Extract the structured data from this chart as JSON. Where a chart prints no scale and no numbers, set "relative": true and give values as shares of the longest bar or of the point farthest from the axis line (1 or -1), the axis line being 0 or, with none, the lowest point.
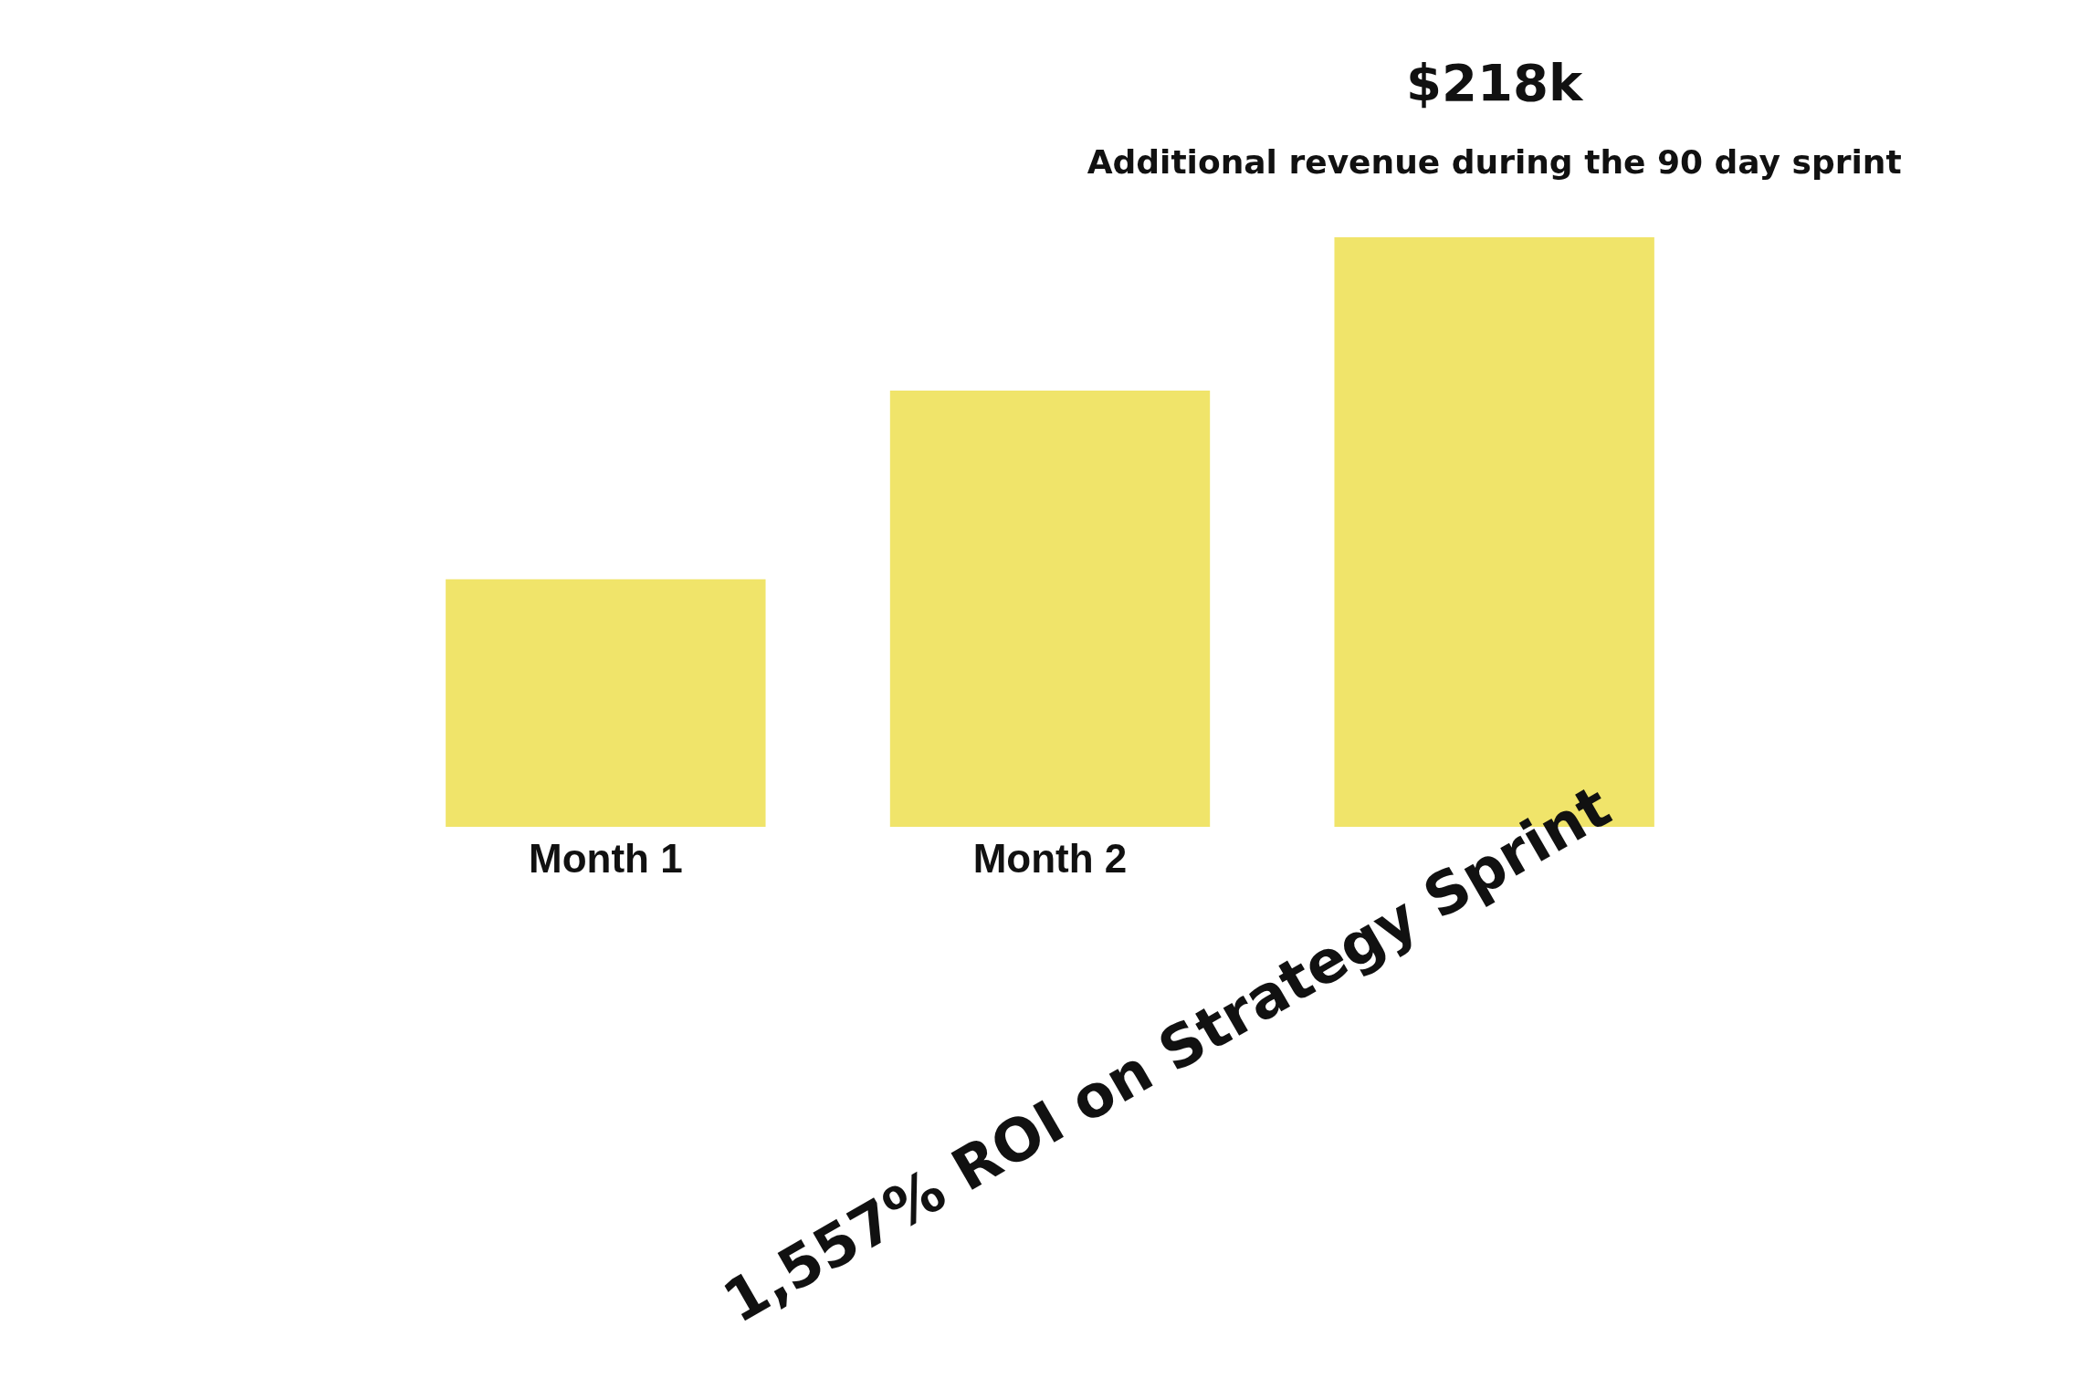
{
  "chart_data": {
    "type": "bar",
    "title": "1,557% ROI on Strategy Sprint",
    "relative": true,
    "categories": [
      "Month 1",
      "Month 2",
      null
    ],
    "values": [
      0.42,
      0.74,
      1
    ],
    "color": "#f0e46a",
    "annotations": [
      "$218k",
      "Additional revenue during the 90 day sprint"
    ],
    "grid": false,
    "legend": false
  }
}
